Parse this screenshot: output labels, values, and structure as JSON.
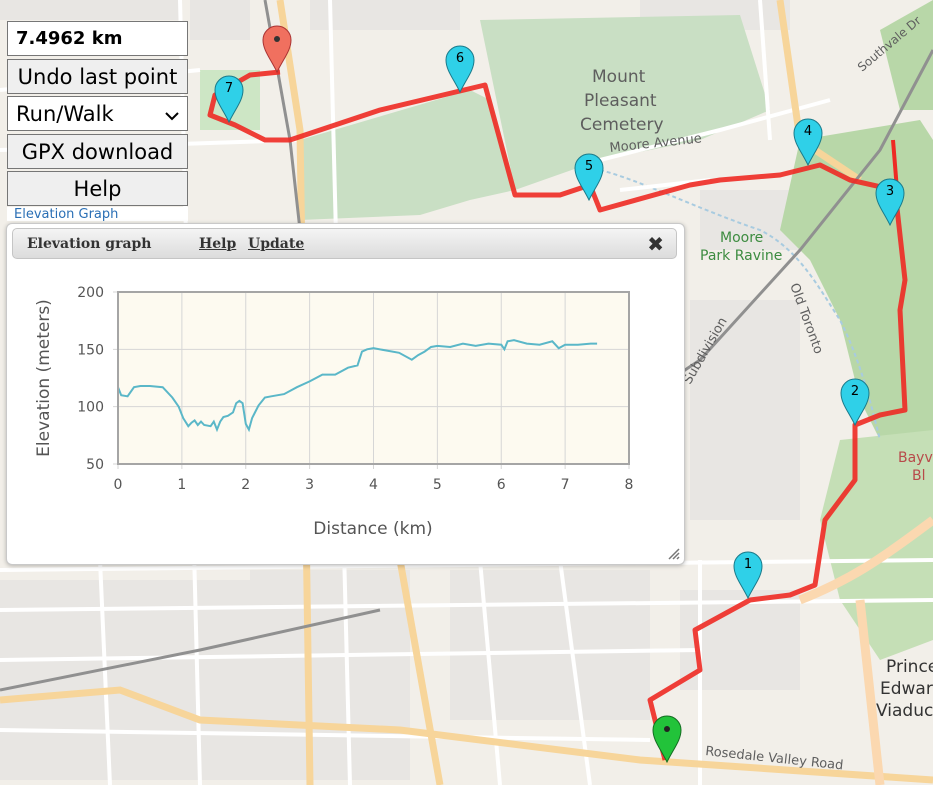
{
  "controls": {
    "distance": "7.4962 km",
    "undo_label": "Undo last point",
    "mode_selected": "Run/Walk",
    "gpx_label": "GPX download",
    "help_label": "Help",
    "elevation_link": "Elevation Graph"
  },
  "panel": {
    "title": "Elevation graph",
    "help_link": "Help",
    "update_link": "Update",
    "close_glyph": "✖"
  },
  "map_labels": {
    "cemetery_1": "Mount",
    "cemetery_2": "Pleasant",
    "cemetery_3": "Cemetery",
    "moore_avenue": "Moore Avenue",
    "ravine_1": "Moore",
    "ravine_2": "Park Ravine",
    "old_toronto": "Old Toronto",
    "subdivision": "Subdivision",
    "southvale": "Southvale Dr",
    "bayview_1": "Bayvi",
    "bayview_2": "Bl",
    "prince_1": "Prince",
    "prince_2": "Edwar",
    "prince_3": "Viaduc",
    "rosedale": "Rosedale Valley Road"
  },
  "waypoints": [
    "1",
    "2",
    "3",
    "4",
    "5",
    "6",
    "7"
  ],
  "colors": {
    "route": "#ee2a24",
    "waypoint": "#2fd0e8",
    "start": "#22c33a",
    "end": "#f0705f",
    "chart_line": "#5ab7c8",
    "chart_bg": "#fdfaf0"
  },
  "chart_data": {
    "type": "line",
    "xlabel": "Distance (km)",
    "ylabel": "Elevation (meters)",
    "xlim": [
      0,
      8
    ],
    "ylim": [
      50,
      200
    ],
    "xticks": [
      "0",
      "1",
      "2",
      "3",
      "4",
      "5",
      "6",
      "7",
      "8"
    ],
    "yticks": [
      "50",
      "100",
      "150",
      "200"
    ],
    "grid": true,
    "series": [
      {
        "x": [
          0,
          0.05,
          0.15,
          0.25,
          0.35,
          0.5,
          0.7,
          0.85,
          0.95,
          1.02,
          1.1,
          1.15,
          1.2,
          1.25,
          1.3,
          1.35,
          1.45,
          1.5,
          1.55,
          1.6,
          1.65,
          1.72,
          1.8,
          1.85,
          1.9,
          1.95,
          2.0,
          2.05,
          2.1,
          2.2,
          2.3,
          2.4,
          2.6,
          2.8,
          3.0,
          3.2,
          3.4,
          3.6,
          3.75,
          3.82,
          3.9,
          4.0,
          4.2,
          4.4,
          4.6,
          4.7,
          4.8,
          4.9,
          5.0,
          5.2,
          5.4,
          5.6,
          5.8,
          6.0,
          6.05,
          6.1,
          6.2,
          6.4,
          6.6,
          6.8,
          6.9,
          7.0,
          7.2,
          7.4,
          7.5
        ],
        "y": [
          117,
          110,
          109,
          117,
          118,
          118,
          117,
          108,
          100,
          90,
          83,
          86,
          88,
          84,
          87,
          84,
          83,
          87,
          80,
          87,
          91,
          92,
          95,
          103,
          105,
          103,
          85,
          80,
          90,
          101,
          108,
          109,
          111,
          117,
          122,
          128,
          128,
          134,
          136,
          148,
          150,
          151,
          149,
          147,
          141,
          145,
          148,
          152,
          153,
          152,
          155,
          153,
          155,
          154,
          150,
          157,
          158,
          155,
          154,
          157,
          151,
          154,
          154,
          155,
          155
        ]
      }
    ]
  }
}
